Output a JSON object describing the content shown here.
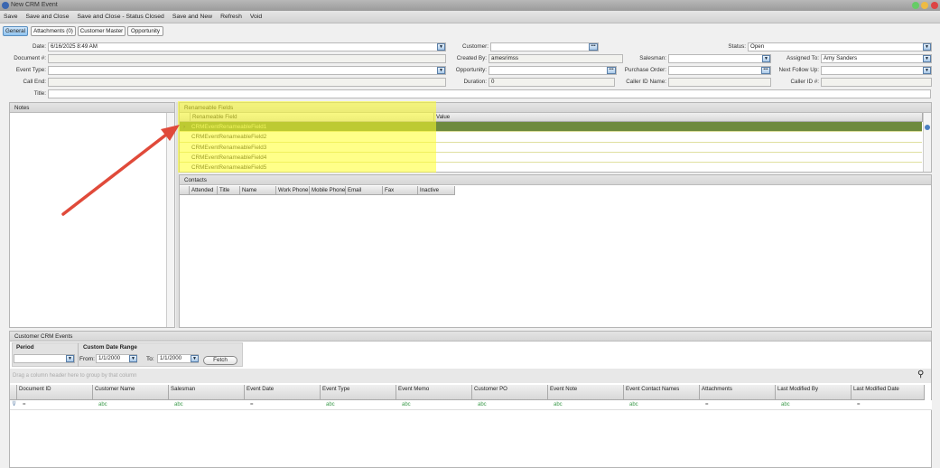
{
  "window": {
    "title": "New CRM Event"
  },
  "menu": [
    "Save",
    "Save and Close",
    "Save and Close - Status Closed",
    "Save and New",
    "Refresh",
    "Void"
  ],
  "tabs": [
    {
      "label": "General",
      "active": true
    },
    {
      "label": "Attachments (0)"
    },
    {
      "label": "Customer Master"
    },
    {
      "label": "Opportunity"
    }
  ],
  "form": {
    "date": {
      "label": "Date:",
      "value": "6/16/2025 8:49 AM"
    },
    "document": {
      "label": "Document #:",
      "value": ""
    },
    "event_type": {
      "label": "Event Type:",
      "value": ""
    },
    "call_end": {
      "label": "Call End:",
      "value": ""
    },
    "title": {
      "label": "Title:",
      "value": ""
    },
    "customer": {
      "label": "Customer:",
      "value": ""
    },
    "created_by": {
      "label": "Created By:",
      "value": "amesrimss"
    },
    "opportunity": {
      "label": "Opportunity:",
      "value": ""
    },
    "duration": {
      "label": "Duration:",
      "value": "0"
    },
    "salesman": {
      "label": "Salesman:",
      "value": ""
    },
    "purchase_order": {
      "label": "Purchase Order:",
      "value": ""
    },
    "caller_id_name": {
      "label": "Caller ID Name:",
      "value": ""
    },
    "status": {
      "label": "Status:",
      "value": "Open"
    },
    "assigned_to": {
      "label": "Assigned To:",
      "value": "Amy Sanders"
    },
    "next_follow_up": {
      "label": "Next Follow Up:",
      "value": ""
    },
    "caller_id_num": {
      "label": "Caller ID #:",
      "value": ""
    }
  },
  "notes": {
    "title": "Notes"
  },
  "renameable": {
    "title": "Renameable Fields",
    "columns": [
      "Renameable Field",
      "Value"
    ],
    "rows": [
      "CRMEventRenameableField1",
      "CRMEventRenameableField2",
      "CRMEventRenameableField3",
      "CRMEventRenameableField4",
      "CRMEventRenameableField5"
    ],
    "highlight_color": "#ffff33",
    "selected_color": "#6e8a3e"
  },
  "contacts": {
    "title": "Contacts",
    "columns": [
      "Attended",
      "Title",
      "Name",
      "Work Phone",
      "Mobile Phone",
      "Email",
      "Fax",
      "Inactive"
    ]
  },
  "events": {
    "title": "Customer CRM Events",
    "period_label": "Period",
    "period_value": "",
    "custom_range_label": "Custom Date Range",
    "from_label": "From:",
    "from_value": "1/1/2000",
    "to_label": "To:",
    "to_value": "1/1/2000",
    "fetch_label": "Fetch",
    "group_hint": "Drag a column header here to group by that column",
    "columns": [
      "Document ID",
      "Customer Name",
      "Salesman",
      "Event Date",
      "Event Type",
      "Event Memo",
      "Customer PO",
      "Event Note",
      "Event Contact Names",
      "Attachments",
      "Last Modified By",
      "Last Modified Date"
    ],
    "filter_ops": [
      "=",
      "abc",
      "abc",
      "=",
      "abc",
      "abc",
      "abc",
      "abc",
      "abc",
      "=",
      "abc",
      "="
    ]
  },
  "annotation": {
    "arrow_color": "#e04a3a"
  }
}
